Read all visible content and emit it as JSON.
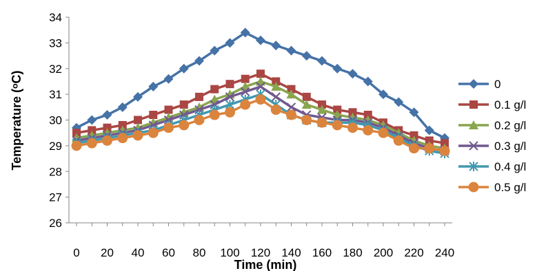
{
  "chart_data": {
    "type": "line",
    "xlabel": "Time (min)",
    "ylabel": "Temperature (ᵒC)",
    "ylim": [
      26,
      34
    ],
    "xlim": [
      0,
      240
    ],
    "x_ticks": [
      0,
      20,
      40,
      60,
      80,
      100,
      120,
      140,
      160,
      180,
      200,
      220,
      240
    ],
    "y_ticks": [
      26,
      27,
      28,
      29,
      30,
      31,
      32,
      33,
      34
    ],
    "grid": false,
    "legend": "right",
    "x": [
      0,
      10,
      20,
      30,
      40,
      50,
      60,
      70,
      80,
      90,
      100,
      110,
      120,
      130,
      140,
      150,
      160,
      170,
      180,
      190,
      200,
      210,
      220,
      230,
      240
    ],
    "series": [
      {
        "name": "0",
        "marker": "diamond",
        "color": "#4572A7",
        "values": [
          29.7,
          30.0,
          30.2,
          30.5,
          30.9,
          31.3,
          31.6,
          32.0,
          32.3,
          32.7,
          33.0,
          33.4,
          33.1,
          32.9,
          32.7,
          32.5,
          32.3,
          32.0,
          31.8,
          31.5,
          31.0,
          30.7,
          30.3,
          29.6,
          29.3
        ]
      },
      {
        "name": "0.1 g/l",
        "marker": "square",
        "color": "#AA4643",
        "values": [
          29.5,
          29.6,
          29.7,
          29.8,
          30.0,
          30.2,
          30.4,
          30.6,
          30.9,
          31.2,
          31.4,
          31.6,
          31.8,
          31.5,
          31.2,
          30.9,
          30.6,
          30.4,
          30.3,
          30.2,
          29.9,
          29.6,
          29.4,
          29.2,
          29.1
        ]
      },
      {
        "name": "0.2 g/l",
        "marker": "triangle",
        "color": "#89A54E",
        "values": [
          29.3,
          29.4,
          29.5,
          29.6,
          29.7,
          29.9,
          30.1,
          30.3,
          30.5,
          30.8,
          31.0,
          31.3,
          31.5,
          31.3,
          31.0,
          30.6,
          30.4,
          30.2,
          30.1,
          30.0,
          29.8,
          29.5,
          29.2,
          29.0,
          28.9
        ]
      },
      {
        "name": "0.3 g/l",
        "marker": "x",
        "color": "#71588F",
        "values": [
          29.2,
          29.3,
          29.4,
          29.5,
          29.6,
          29.8,
          30.0,
          30.2,
          30.4,
          30.6,
          30.9,
          31.1,
          31.3,
          30.9,
          30.5,
          30.2,
          30.1,
          30.0,
          30.0,
          29.9,
          29.7,
          29.4,
          29.1,
          28.9,
          28.8
        ]
      },
      {
        "name": "0.4 g/l",
        "marker": "star",
        "color": "#4198AF",
        "values": [
          29.1,
          29.2,
          29.3,
          29.4,
          29.5,
          29.6,
          29.8,
          30.0,
          30.2,
          30.4,
          30.6,
          30.8,
          31.0,
          30.6,
          30.2,
          30.0,
          29.9,
          29.9,
          29.9,
          29.8,
          29.6,
          29.3,
          29.0,
          28.8,
          28.7
        ]
      },
      {
        "name": "0.5 g/l",
        "marker": "circle",
        "color": "#DB843D",
        "values": [
          29.0,
          29.1,
          29.2,
          29.3,
          29.4,
          29.5,
          29.7,
          29.8,
          30.0,
          30.2,
          30.3,
          30.6,
          30.8,
          30.4,
          30.2,
          30.0,
          29.9,
          29.8,
          29.7,
          29.6,
          29.5,
          29.2,
          28.9,
          28.9,
          28.8
        ]
      }
    ]
  }
}
